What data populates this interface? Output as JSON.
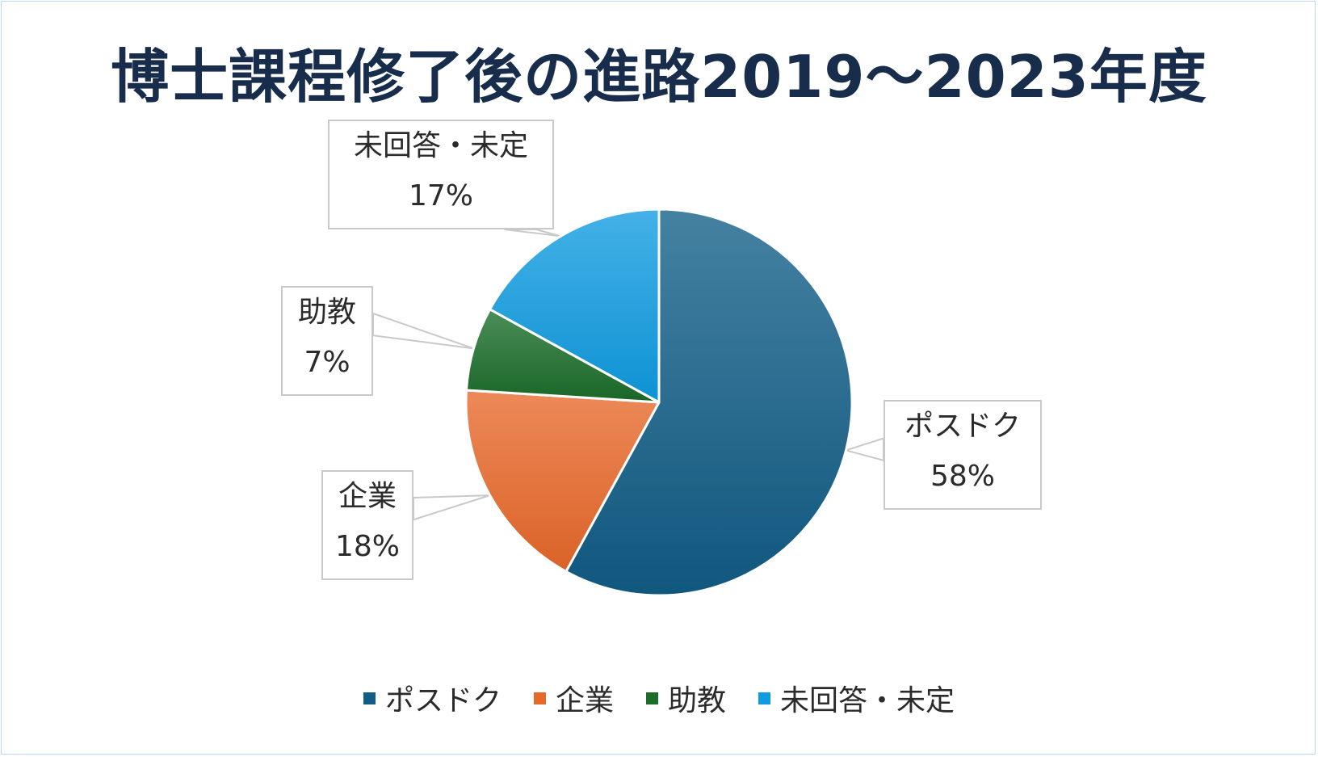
{
  "chart_data": {
    "type": "pie",
    "title": "博士課程修了後の進路2019～2023年度",
    "slices": [
      {
        "label": "ポスドク",
        "value": 58,
        "value_label": "58%",
        "color": "#115d86"
      },
      {
        "label": "企業",
        "value": 18,
        "value_label": "18%",
        "color": "#e8682a"
      },
      {
        "label": "助教",
        "value": 7,
        "value_label": "7%",
        "color": "#1a6d2a"
      },
      {
        "label": "未回答・未定",
        "value": 17,
        "value_label": "17%",
        "color": "#0f9be0"
      }
    ],
    "legend_position": "bottom",
    "start_angle": "12 o'clock",
    "direction": "clockwise"
  }
}
